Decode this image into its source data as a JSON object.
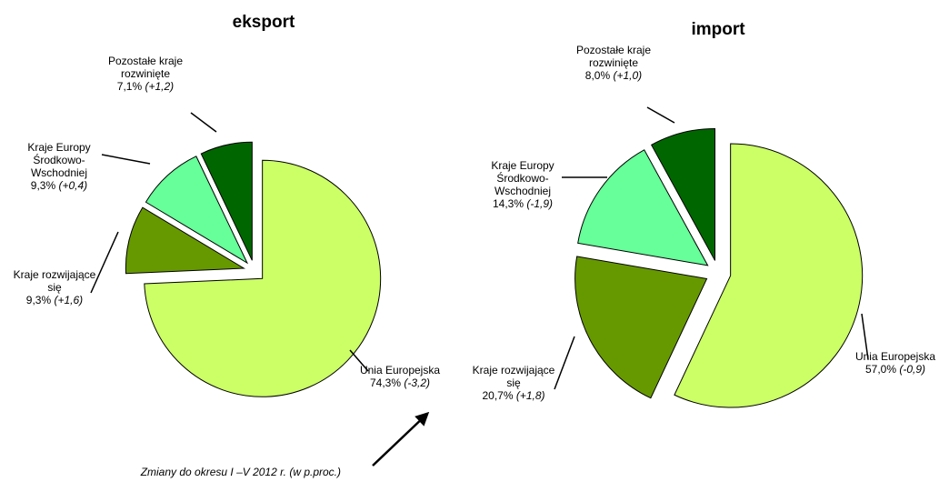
{
  "chart_data": [
    {
      "type": "pie",
      "title": "eksport",
      "categories": [
        "Unia Europejska",
        "Kraje rozwijające się",
        "Kraje Europy Środkowo-Wschodniej",
        "Pozostałe kraje rozwinięte"
      ],
      "values": [
        74.3,
        9.3,
        9.3,
        7.1
      ],
      "value_labels": [
        "74,3%",
        "9,3%",
        "9,3%",
        "7,1%"
      ],
      "change_labels": [
        "(-3,2)",
        "(+1,6)",
        "(+0,4)",
        "(+1,2)"
      ],
      "colors": [
        "#ccff66",
        "#669900",
        "#66ff99",
        "#006600"
      ]
    },
    {
      "type": "pie",
      "title": "import",
      "categories": [
        "Unia Europejska",
        "Kraje rozwijające się",
        "Kraje Europy Środkowo-Wschodniej",
        "Pozostałe kraje rozwinięte"
      ],
      "values": [
        57.0,
        20.7,
        14.3,
        8.0
      ],
      "value_labels": [
        "57,0%",
        "20,7%",
        "14,3%",
        "8,0%"
      ],
      "change_labels": [
        "(-0,9)",
        "(+1,8)",
        "(-1,9)",
        "(+1,0)"
      ],
      "colors": [
        "#ccff66",
        "#669900",
        "#66ff99",
        "#006600"
      ]
    }
  ],
  "annotation": "Zmiany do okresu I –V 2012 r. (w p.proc.)"
}
